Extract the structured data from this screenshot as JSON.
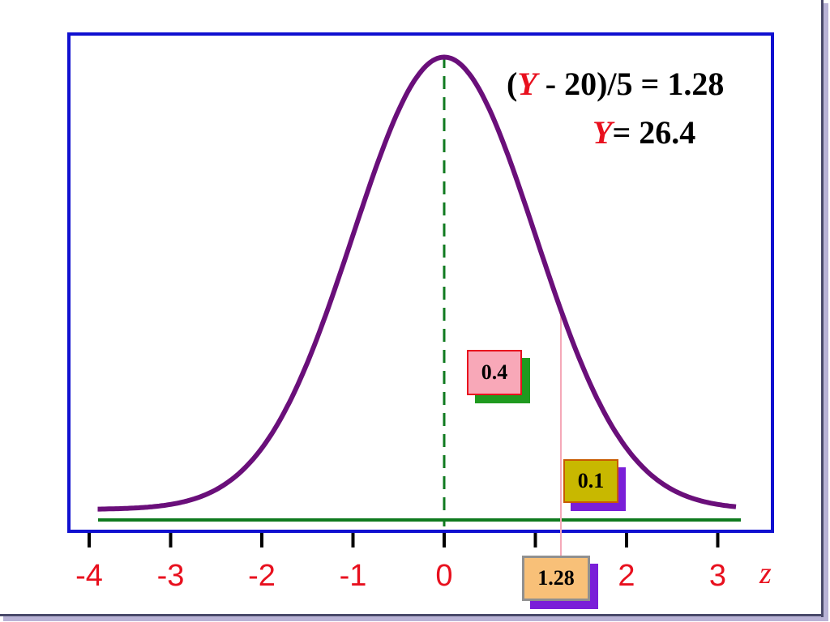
{
  "chart_data": {
    "type": "line",
    "xlabel": "z",
    "ylabel": "",
    "xlim": [
      -4,
      3.5
    ],
    "ylim": [
      0,
      0.42
    ],
    "x_ticks": [
      -4,
      -3,
      -2,
      -1,
      0,
      1,
      2,
      3
    ],
    "x_tick_labels": [
      "-4",
      "-3",
      "-2",
      "-1",
      "0",
      "",
      "2",
      "3"
    ],
    "curve": {
      "name": "standard normal density",
      "function": "normal_pdf",
      "mean": 0,
      "sd": 1,
      "x_range": [
        -3.8,
        3.2
      ],
      "color": "#6a0f7a"
    },
    "reference_lines": [
      {
        "x": 0,
        "style": "dashed",
        "color": "#0f7a1f"
      },
      {
        "x": 1.28,
        "style": "solid",
        "color": "#f5a8b8"
      }
    ],
    "baseline_color": "#0f7a1f",
    "annotations": {
      "peak_label": "0.4",
      "tail_label": "0.1",
      "z_label": "1.28"
    }
  },
  "equation": {
    "line1_open": "(",
    "line1_var": "Y",
    "line1_rest": " - 20)/5 = 1.28",
    "line2_var": "Y",
    "line2_rest": "= 26.4"
  },
  "colors": {
    "plot_border": "#1010d0",
    "curve": "#6a0f7a",
    "label_red": "#e8101e",
    "box_peak": "#f8a8b8",
    "box_peak_border": "#e8101e",
    "box_peak_shadow": "#1f9a1f",
    "box_tail": "#c8b800",
    "box_tail_border": "#c85a00",
    "box_tail_shadow": "#7a1fd8",
    "box_z": "#f8c078",
    "box_z_border": "#909090",
    "box_z_shadow": "#7a1fd8"
  }
}
